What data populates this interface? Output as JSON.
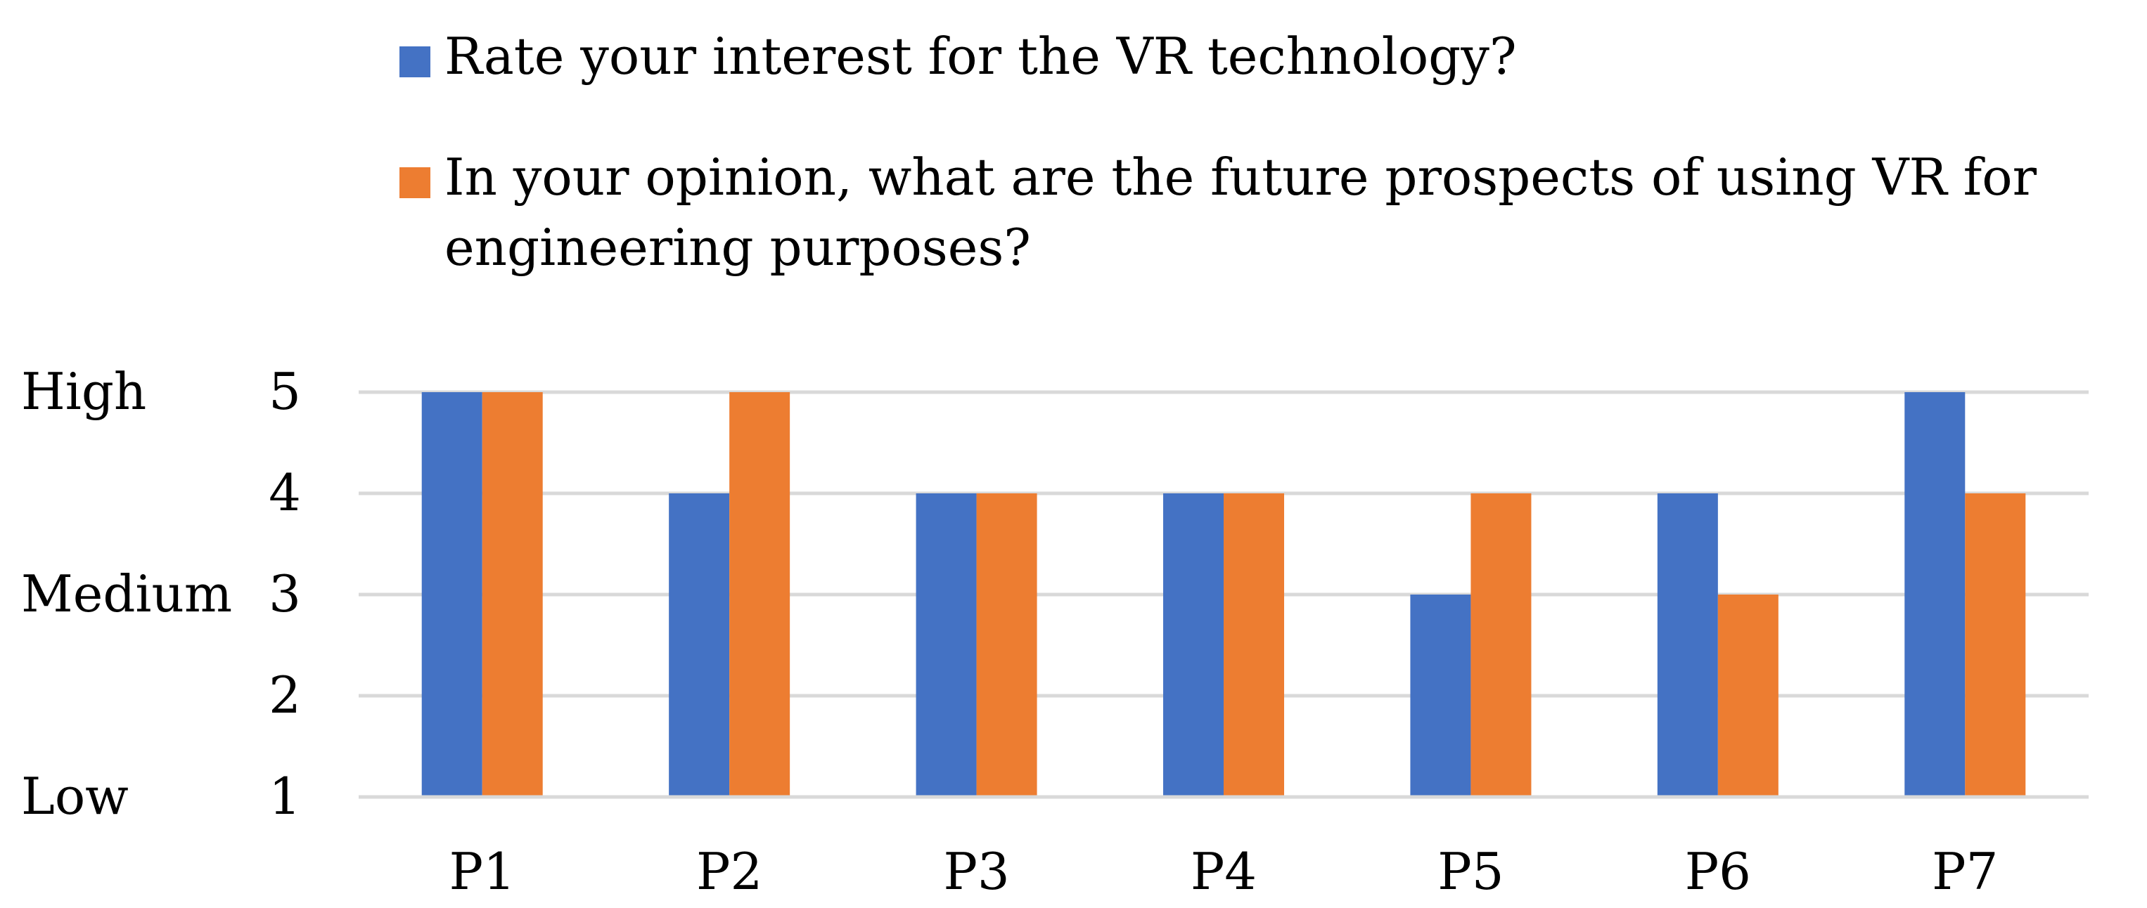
{
  "chart_data": {
    "type": "bar",
    "title": "",
    "categories": [
      "P1",
      "P2",
      "P3",
      "P4",
      "P5",
      "P6",
      "P7"
    ],
    "series": [
      {
        "name": "Rate your interest for the VR technology?",
        "color": "#4472C4",
        "values": [
          5,
          4,
          4,
          4,
          3,
          4,
          5
        ]
      },
      {
        "name": "In your opinion, what are the future prospects of using VR for engineering purposes?",
        "color": "#ED7D31",
        "values": [
          5,
          5,
          4,
          4,
          4,
          3,
          4
        ]
      }
    ],
    "yticks": [
      1,
      2,
      3,
      4,
      5
    ],
    "ylim": [
      1,
      5
    ],
    "ylevels": [
      {
        "label": "High",
        "value": 5
      },
      {
        "label": "Medium",
        "value": 3
      },
      {
        "label": "Low",
        "value": 1
      }
    ],
    "grid": true,
    "gridcolor": "#D9D9D9",
    "legend_position": "top"
  }
}
